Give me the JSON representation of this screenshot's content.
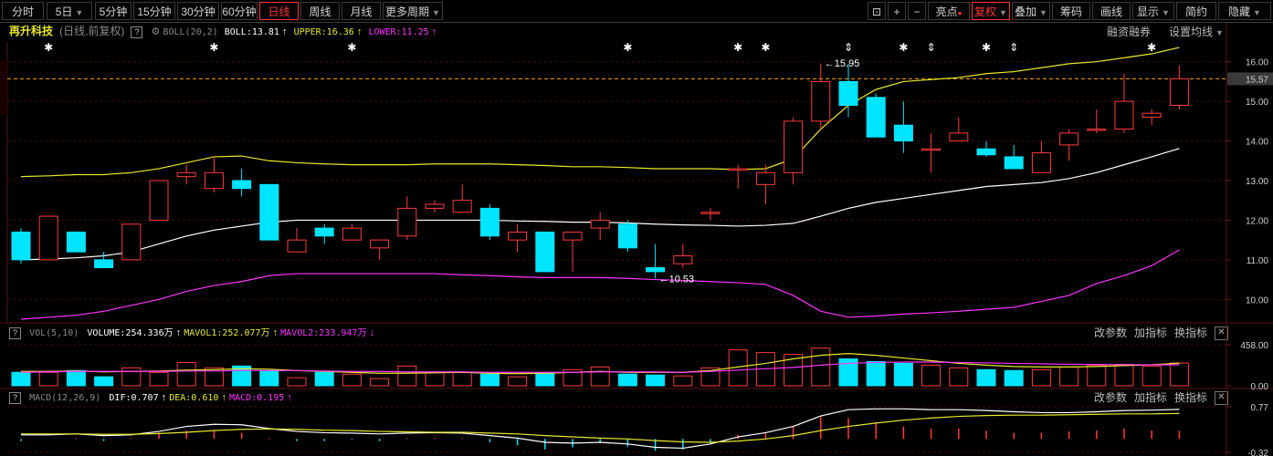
{
  "toolbar": {
    "periods": [
      "分时",
      "5日",
      "5分钟",
      "15分钟",
      "30分钟",
      "60分钟",
      "日线",
      "周线",
      "月线",
      "更多周期"
    ],
    "active_period": "日线",
    "right_icons": [
      "lock-icon",
      "plus-icon",
      "minus-icon"
    ],
    "right_items": [
      "亮点",
      "复权",
      "叠加",
      "筹码",
      "画线",
      "显示",
      "简约",
      "隐藏"
    ]
  },
  "main_chart": {
    "stock_name": "再升科技",
    "period_note": "(日线,前复权)",
    "indicator": "BOLL(20,2)",
    "boll_label": "BOLL:13.81",
    "upper_label": "UPPER:16.36",
    "lower_label": "LOWER:11.25",
    "right_link_1": "融资融券",
    "right_link_2": "设置均线",
    "high_marker": "15.95",
    "low_marker": "10.53",
    "current_price": "15.57",
    "y_ticks": [
      "16.00",
      "15.00",
      "14.00",
      "13.00",
      "12.00",
      "11.00",
      "10.00"
    ]
  },
  "volume_panel": {
    "indicator": "VOL(5,10)",
    "volume_label": "VOLUME:254.336万",
    "mavol1_label": "MAVOL1:252.077万",
    "mavol2_label": "MAVOL2:233.947万",
    "buttons": [
      "改参数",
      "加指标",
      "换指标"
    ],
    "y_ticks": [
      "458.00",
      "0.00"
    ]
  },
  "macd_panel": {
    "indicator": "MACD(12,26,9)",
    "dif_label": "DIF:0.707",
    "dea_label": "DEA:0.610",
    "macd_label": "MACD:0.195",
    "buttons": [
      "改参数",
      "加指标",
      "换指标"
    ],
    "y_ticks": [
      "0.77",
      "-0.32"
    ]
  },
  "colors": {
    "up": "#ff3b3b",
    "down": "#00e5ff",
    "boll_mid": "#ffffff",
    "upper": "#e8e82a",
    "lower": "#ff33ff",
    "price_line": "#ffa500"
  },
  "chart_data": [
    {
      "type": "candlestick",
      "title": "再升科技 BOLL(20,2)",
      "candles": [
        {
          "o": 11.7,
          "h": 11.8,
          "l": 10.9,
          "c": 11.0
        },
        {
          "o": 11.0,
          "h": 12.1,
          "l": 11.0,
          "c": 12.1
        },
        {
          "o": 11.7,
          "h": 11.7,
          "l": 11.2,
          "c": 11.2
        },
        {
          "o": 11.0,
          "h": 11.2,
          "l": 10.8,
          "c": 10.8
        },
        {
          "o": 11.0,
          "h": 11.9,
          "l": 11.0,
          "c": 11.9
        },
        {
          "o": 12.0,
          "h": 13.0,
          "l": 12.0,
          "c": 13.0
        },
        {
          "o": 13.1,
          "h": 13.4,
          "l": 12.9,
          "c": 13.2
        },
        {
          "o": 12.8,
          "h": 13.6,
          "l": 12.7,
          "c": 13.2
        },
        {
          "o": 13.0,
          "h": 13.3,
          "l": 12.6,
          "c": 12.8
        },
        {
          "o": 12.9,
          "h": 12.9,
          "l": 11.5,
          "c": 11.5
        },
        {
          "o": 11.2,
          "h": 11.8,
          "l": 11.2,
          "c": 11.5
        },
        {
          "o": 11.8,
          "h": 11.9,
          "l": 11.4,
          "c": 11.6
        },
        {
          "o": 11.5,
          "h": 11.9,
          "l": 11.5,
          "c": 11.8
        },
        {
          "o": 11.3,
          "h": 11.5,
          "l": 11.0,
          "c": 11.5
        },
        {
          "o": 11.6,
          "h": 12.6,
          "l": 11.5,
          "c": 12.3
        },
        {
          "o": 12.3,
          "h": 12.5,
          "l": 12.2,
          "c": 12.4
        },
        {
          "o": 12.2,
          "h": 12.9,
          "l": 12.2,
          "c": 12.5
        },
        {
          "o": 12.3,
          "h": 12.4,
          "l": 11.5,
          "c": 11.6
        },
        {
          "o": 11.5,
          "h": 11.9,
          "l": 11.2,
          "c": 11.7
        },
        {
          "o": 11.7,
          "h": 11.7,
          "l": 10.7,
          "c": 10.7
        },
        {
          "o": 11.5,
          "h": 11.7,
          "l": 10.7,
          "c": 11.7
        },
        {
          "o": 11.8,
          "h": 12.2,
          "l": 11.5,
          "c": 12.0
        },
        {
          "o": 11.9,
          "h": 12.0,
          "l": 11.2,
          "c": 11.3
        },
        {
          "o": 10.8,
          "h": 11.4,
          "l": 10.53,
          "c": 10.7
        },
        {
          "o": 10.9,
          "h": 11.4,
          "l": 10.8,
          "c": 11.1
        },
        {
          "o": 12.2,
          "h": 12.3,
          "l": 12.0,
          "c": 12.2
        },
        {
          "o": 13.3,
          "h": 13.4,
          "l": 12.8,
          "c": 13.3
        },
        {
          "o": 12.9,
          "h": 13.4,
          "l": 12.4,
          "c": 13.2
        },
        {
          "o": 13.2,
          "h": 14.6,
          "l": 12.9,
          "c": 14.5
        },
        {
          "o": 14.5,
          "h": 15.95,
          "l": 14.3,
          "c": 15.5
        },
        {
          "o": 15.5,
          "h": 15.95,
          "l": 14.6,
          "c": 14.9
        },
        {
          "o": 15.1,
          "h": 15.2,
          "l": 14.1,
          "c": 14.1
        },
        {
          "o": 14.4,
          "h": 15.0,
          "l": 13.7,
          "c": 14.0
        },
        {
          "o": 13.8,
          "h": 14.2,
          "l": 13.2,
          "c": 13.8
        },
        {
          "o": 14.0,
          "h": 14.6,
          "l": 14.0,
          "c": 14.2
        },
        {
          "o": 13.8,
          "h": 14.0,
          "l": 13.6,
          "c": 13.65
        },
        {
          "o": 13.6,
          "h": 13.9,
          "l": 13.3,
          "c": 13.3
        },
        {
          "o": 13.2,
          "h": 14.0,
          "l": 13.2,
          "c": 13.7
        },
        {
          "o": 13.9,
          "h": 14.3,
          "l": 13.5,
          "c": 14.2
        },
        {
          "o": 14.3,
          "h": 14.8,
          "l": 14.2,
          "c": 14.3
        },
        {
          "o": 14.3,
          "h": 15.7,
          "l": 14.2,
          "c": 15.0
        },
        {
          "o": 14.6,
          "h": 14.8,
          "l": 14.4,
          "c": 14.7
        },
        {
          "o": 14.9,
          "h": 15.9,
          "l": 14.8,
          "c": 15.57
        }
      ],
      "boll_mid": [
        11.0,
        11.02,
        11.05,
        11.1,
        11.2,
        11.4,
        11.6,
        11.75,
        11.85,
        11.95,
        12.0,
        12.0,
        12.0,
        12.0,
        12.0,
        12.0,
        12.0,
        12.0,
        11.98,
        11.97,
        11.95,
        11.95,
        11.93,
        11.9,
        11.88,
        11.87,
        11.85,
        11.87,
        11.92,
        12.1,
        12.3,
        12.45,
        12.55,
        12.65,
        12.75,
        12.85,
        12.9,
        12.95,
        13.05,
        13.2,
        13.4,
        13.6,
        13.81
      ],
      "upper": [
        13.1,
        13.12,
        13.15,
        13.15,
        13.2,
        13.3,
        13.45,
        13.6,
        13.62,
        13.5,
        13.45,
        13.42,
        13.4,
        13.4,
        13.4,
        13.42,
        13.42,
        13.42,
        13.4,
        13.38,
        13.35,
        13.35,
        13.33,
        13.3,
        13.3,
        13.3,
        13.28,
        13.3,
        13.55,
        14.3,
        14.9,
        15.3,
        15.5,
        15.55,
        15.6,
        15.7,
        15.75,
        15.85,
        15.95,
        16.0,
        16.1,
        16.2,
        16.36
      ],
      "lower": [
        9.5,
        9.55,
        9.6,
        9.7,
        9.85,
        10.0,
        10.2,
        10.35,
        10.45,
        10.6,
        10.65,
        10.65,
        10.65,
        10.65,
        10.65,
        10.65,
        10.62,
        10.6,
        10.57,
        10.55,
        10.55,
        10.55,
        10.53,
        10.5,
        10.48,
        10.45,
        10.42,
        10.38,
        10.1,
        9.7,
        9.55,
        9.58,
        9.63,
        9.66,
        9.7,
        9.75,
        9.8,
        9.95,
        10.1,
        10.4,
        10.6,
        10.85,
        11.25
      ],
      "ylim": [
        9.5,
        16.5
      ]
    },
    {
      "type": "bar",
      "title": "VOL(5,10)",
      "values": [
        150,
        150,
        170,
        100,
        200,
        150,
        260,
        200,
        220,
        170,
        90,
        150,
        130,
        80,
        220,
        150,
        150,
        130,
        100,
        150,
        180,
        210,
        130,
        120,
        110,
        200,
        400,
        370,
        350,
        420,
        300,
        270,
        250,
        230,
        200,
        180,
        170,
        180,
        210,
        230,
        240,
        220,
        254
      ],
      "mavol1": [
        160,
        160,
        165,
        155,
        160,
        165,
        175,
        180,
        190,
        185,
        170,
        160,
        150,
        140,
        140,
        145,
        150,
        140,
        135,
        140,
        150,
        160,
        150,
        150,
        150,
        170,
        210,
        250,
        300,
        340,
        360,
        340,
        310,
        280,
        250,
        230,
        215,
        210,
        210,
        215,
        225,
        235,
        252
      ],
      "mavol2": [
        150,
        155,
        160,
        160,
        160,
        160,
        165,
        165,
        170,
        170,
        170,
        165,
        160,
        160,
        155,
        155,
        155,
        150,
        150,
        150,
        150,
        155,
        155,
        155,
        150,
        160,
        175,
        190,
        205,
        230,
        250,
        260,
        265,
        265,
        260,
        255,
        250,
        245,
        240,
        238,
        236,
        234,
        234
      ],
      "ylim": [
        0,
        458
      ]
    },
    {
      "type": "bar",
      "title": "MACD(12,26,9)",
      "macd": [
        -0.05,
        0.0,
        0.02,
        -0.05,
        0.02,
        0.15,
        0.2,
        0.2,
        0.15,
        0.02,
        -0.05,
        -0.05,
        -0.02,
        -0.05,
        0.02,
        0.03,
        0.02,
        -0.08,
        -0.15,
        -0.25,
        -0.2,
        -0.1,
        -0.18,
        -0.28,
        -0.25,
        -0.1,
        0.1,
        0.15,
        0.3,
        0.55,
        0.5,
        0.4,
        0.3,
        0.25,
        0.25,
        0.2,
        0.15,
        0.15,
        0.18,
        0.2,
        0.25,
        0.2,
        0.195
      ],
      "dif": [
        0.1,
        0.1,
        0.12,
        0.08,
        0.1,
        0.18,
        0.3,
        0.35,
        0.34,
        0.25,
        0.18,
        0.15,
        0.14,
        0.12,
        0.14,
        0.15,
        0.14,
        0.08,
        0.02,
        -0.08,
        -0.1,
        -0.08,
        -0.12,
        -0.2,
        -0.22,
        -0.12,
        0.05,
        0.15,
        0.3,
        0.55,
        0.7,
        0.72,
        0.72,
        0.7,
        0.7,
        0.68,
        0.65,
        0.63,
        0.63,
        0.65,
        0.68,
        0.69,
        0.707
      ],
      "dea": [
        0.12,
        0.12,
        0.12,
        0.11,
        0.11,
        0.13,
        0.16,
        0.2,
        0.23,
        0.24,
        0.23,
        0.21,
        0.2,
        0.18,
        0.17,
        0.16,
        0.16,
        0.14,
        0.12,
        0.08,
        0.05,
        0.02,
        0.0,
        -0.04,
        -0.07,
        -0.08,
        -0.05,
        0.0,
        0.08,
        0.2,
        0.3,
        0.38,
        0.45,
        0.5,
        0.54,
        0.56,
        0.57,
        0.57,
        0.58,
        0.59,
        0.6,
        0.6,
        0.61
      ],
      "ylim": [
        -0.32,
        0.77
      ]
    }
  ]
}
